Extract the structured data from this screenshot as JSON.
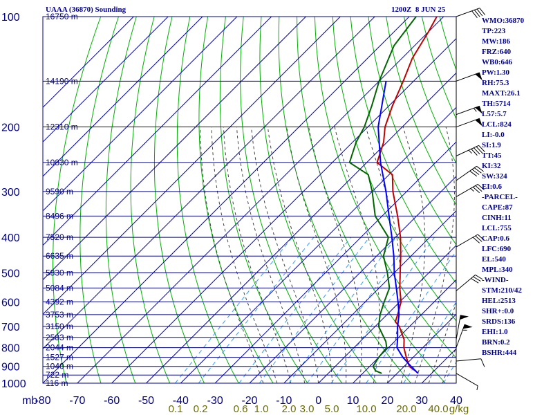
{
  "header": {
    "station": "UAAA (36870) Sounding",
    "time": "1200Z  8 JUN 25"
  },
  "indices": [
    "WMO:36870",
    "TP:223",
    "MW:186",
    "FRZ:640",
    "WB0:646",
    "PW:1.30",
    "RH:75.3",
    "MAXT:26.1",
    "TH:5714",
    "L57:5.7",
    "LCL:824",
    "LI:-0.0",
    "SI:1.9",
    "TT:45",
    "KI:32",
    "SW:324",
    "EI:0.6",
    "-PARCEL-",
    "CAPE:87",
    "CINH:11",
    "LCL:755",
    "CAP:0.6",
    "LFC:690",
    "EL:540",
    "MPL:340",
    "-WIND-",
    "STM:210/42",
    "HEL:2513",
    "SHR+:0.0",
    "SRDS:136",
    "EHI:1.0",
    "BRN:0.2",
    "BSHR:444"
  ],
  "colors": {
    "frame": "#00008b",
    "isotherm": "#0000b0",
    "dry_adiabat": "#00b000",
    "moist_adiabat": "#444444",
    "mixing_ratio": "#3399ff",
    "temperature": "#c00000",
    "dewpoint": "#006400",
    "parcel": "#0000ff",
    "mix_label": "#6b6b00",
    "background": "#ffffff"
  },
  "chart_data": {
    "type": "skew-t log-p sounding",
    "pressure_unit": "mb",
    "temperature_unit": "C",
    "pressure_range_mb": [
      1000,
      100
    ],
    "temperature_range_c": [
      -80,
      40
    ],
    "pressure_ticks": [
      {
        "p": 100,
        "label": "100"
      },
      {
        "p": 200,
        "label": "200"
      },
      {
        "p": 300,
        "label": "300"
      },
      {
        "p": 400,
        "label": "400"
      },
      {
        "p": 500,
        "label": "500"
      },
      {
        "p": 600,
        "label": "600"
      },
      {
        "p": 700,
        "label": "700"
      },
      {
        "p": 800,
        "label": "800"
      },
      {
        "p": 900,
        "label": "900"
      },
      {
        "p": 1000,
        "label": "1000"
      }
    ],
    "unit_label": "mb",
    "temperature_ticks": [
      "-80",
      "-70",
      "-60",
      "-50",
      "-40",
      "-30",
      "-20",
      "-10",
      "0",
      "10",
      "20",
      "30",
      "40"
    ],
    "height_labels": [
      {
        "p": 100,
        "label": "16750 m"
      },
      {
        "p": 150,
        "label": "14190 m"
      },
      {
        "p": 200,
        "label": "12310 m"
      },
      {
        "p": 250,
        "label": "10830 m"
      },
      {
        "p": 300,
        "label": "9590 m"
      },
      {
        "p": 350,
        "label": "8496 m"
      },
      {
        "p": 400,
        "label": "7520 m"
      },
      {
        "p": 450,
        "label": "6635 m"
      },
      {
        "p": 500,
        "label": "5830 m"
      },
      {
        "p": 550,
        "label": "5084 m"
      },
      {
        "p": 600,
        "label": "4392 m"
      },
      {
        "p": 650,
        "label": "3753 m"
      },
      {
        "p": 700,
        "label": "3150 m"
      },
      {
        "p": 750,
        "label": "2583 m"
      },
      {
        "p": 800,
        "label": "2044 m"
      },
      {
        "p": 850,
        "label": "1527 m"
      },
      {
        "p": 900,
        "label": "1040 m"
      },
      {
        "p": 950,
        "label": "722 m"
      },
      {
        "p": 1000,
        "label": "116 m"
      }
    ],
    "mixing_ratio_label": [
      "0.1",
      "0.2",
      "0.6",
      "1.0",
      "2.0",
      "3.0",
      "5.0",
      "10.0",
      "20.0",
      "40.0"
    ],
    "mixing_ratio_unit": "g/kg",
    "series": [
      {
        "name": "temperature",
        "points": [
          [
            940,
            26.1
          ],
          [
            925,
            24.5
          ],
          [
            900,
            21.5
          ],
          [
            850,
            18
          ],
          [
            800,
            14.5
          ],
          [
            760,
            12.2
          ],
          [
            700,
            7
          ],
          [
            680,
            4.5
          ],
          [
            650,
            3.1
          ],
          [
            600,
            0.4
          ],
          [
            550,
            -4
          ],
          [
            500,
            -8.3
          ],
          [
            450,
            -13
          ],
          [
            400,
            -18.5
          ],
          [
            350,
            -25.5
          ],
          [
            300,
            -34
          ],
          [
            270,
            -39
          ],
          [
            250,
            -47
          ],
          [
            220,
            -51
          ],
          [
            200,
            -55
          ],
          [
            175,
            -59
          ],
          [
            150,
            -63
          ],
          [
            130,
            -67
          ],
          [
            110,
            -70
          ],
          [
            100,
            -72
          ]
        ]
      },
      {
        "name": "dewpoint",
        "points": [
          [
            940,
            15.5
          ],
          [
            925,
            13
          ],
          [
            900,
            11
          ],
          [
            850,
            10
          ],
          [
            800,
            9.5
          ],
          [
            770,
            7.5
          ],
          [
            700,
            1
          ],
          [
            650,
            -2
          ],
          [
            600,
            -4.5
          ],
          [
            550,
            -7
          ],
          [
            500,
            -12
          ],
          [
            450,
            -18
          ],
          [
            400,
            -22
          ],
          [
            350,
            -32
          ],
          [
            300,
            -40
          ],
          [
            270,
            -46
          ],
          [
            250,
            -55
          ],
          [
            220,
            -59
          ],
          [
            200,
            -61
          ],
          [
            175,
            -65
          ],
          [
            150,
            -70
          ],
          [
            120,
            -76
          ],
          [
            100,
            -78
          ]
        ]
      },
      {
        "name": "parcel",
        "points": [
          [
            940,
            26.1
          ],
          [
            900,
            22
          ],
          [
            850,
            17
          ],
          [
            800,
            12.5
          ],
          [
            755,
            10
          ],
          [
            700,
            6.5
          ],
          [
            650,
            3.5
          ],
          [
            600,
            -0.5
          ],
          [
            550,
            -5
          ],
          [
            500,
            -10
          ],
          [
            450,
            -15
          ],
          [
            400,
            -21
          ],
          [
            350,
            -28
          ],
          [
            300,
            -36
          ],
          [
            250,
            -46
          ],
          [
            200,
            -57
          ],
          [
            150,
            -68
          ]
        ]
      }
    ],
    "winds": [
      {
        "p": 100,
        "dir": 250,
        "kt": 40
      },
      {
        "p": 150,
        "dir": 250,
        "kt": 50
      },
      {
        "p": 185,
        "dir": 250,
        "kt": 55
      },
      {
        "p": 200,
        "dir": 250,
        "kt": 50
      },
      {
        "p": 240,
        "dir": 245,
        "kt": 45
      },
      {
        "p": 280,
        "dir": 235,
        "kt": 40
      },
      {
        "p": 310,
        "dir": 240,
        "kt": 35
      },
      {
        "p": 425,
        "dir": 240,
        "kt": 30
      },
      {
        "p": 560,
        "dir": 230,
        "kt": 30
      },
      {
        "p": 760,
        "dir": 190,
        "kt": 50
      },
      {
        "p": 800,
        "dir": 200,
        "kt": 55
      },
      {
        "p": 870,
        "dir": 265,
        "kt": 10
      },
      {
        "p": 940,
        "dir": 300,
        "kt": 5
      }
    ]
  }
}
